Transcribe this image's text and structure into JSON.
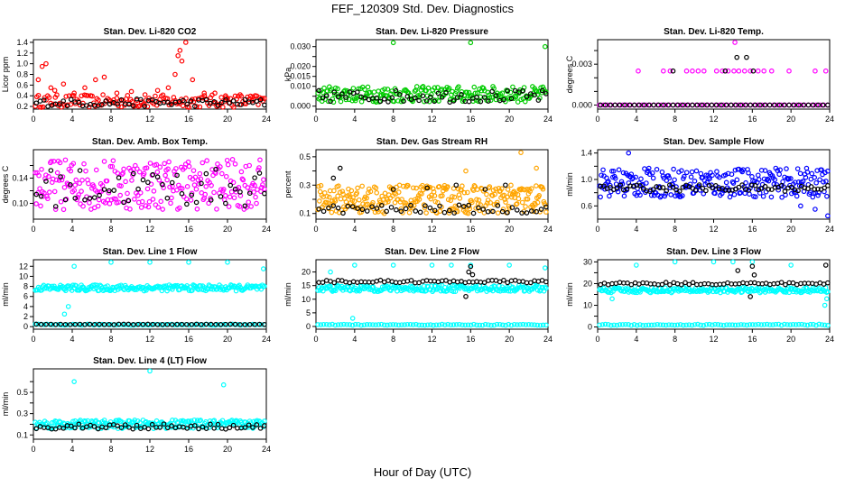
{
  "title": "FEF_120309  Std. Dev. Diagnostics",
  "xlabel": "Hour of Day (UTC)",
  "colors": {
    "primary": "#000000",
    "red": "#ff0000",
    "green": "#00cc00",
    "magenta": "#ff00ff",
    "orange": "#ffa500",
    "blue": "#0000ff",
    "cyan": "#00ffff"
  },
  "chart_data": [
    {
      "type": "scatter",
      "title": "Stan. Dev. Li-820 CO2",
      "ylabel": "Licor ppm",
      "xlim": [
        0,
        24
      ],
      "ylim": [
        0.15,
        1.45
      ],
      "xticks": [
        "0",
        "4",
        "8",
        "12",
        "16",
        "20",
        "24"
      ],
      "yticks": [
        0.2,
        0.4,
        0.6,
        0.8,
        1.0,
        1.2,
        1.4
      ],
      "ytick_labels": [
        "0.2",
        "0.4",
        "0.6",
        "0.8",
        "1.0",
        "1.2",
        "1.4"
      ],
      "series": [
        {
          "color": "#ff0000",
          "x": [
            0.5,
            0.9,
            1.3,
            1.8,
            2.2,
            3.1,
            4.2,
            5.3,
            6.4,
            7.3,
            8.6,
            10.1,
            11.5,
            12.8,
            13.9,
            14.6,
            14.9,
            15.1,
            15.3,
            15.7,
            16.4,
            17.6,
            18.7,
            19.8,
            21.3,
            22.6,
            23.6
          ],
          "y": [
            0.7,
            0.95,
            1.0,
            0.55,
            0.5,
            0.62,
            0.45,
            0.55,
            0.7,
            0.75,
            0.45,
            0.48,
            0.42,
            0.5,
            0.55,
            0.8,
            1.15,
            1.25,
            1.05,
            1.4,
            0.7,
            0.45,
            0.45,
            0.4,
            0.42,
            0.38,
            0.35
          ]
        },
        {
          "color": "#ff0000",
          "band": true,
          "x0": 0.2,
          "x1": 23.8,
          "yc": 0.3,
          "amp": 0.12,
          "n": 150
        },
        {
          "color": "#000000",
          "band": true,
          "x0": 0.3,
          "x1": 23.8,
          "yc": 0.27,
          "amp": 0.07,
          "n": 60
        }
      ]
    },
    {
      "type": "scatter",
      "title": "Stan. Dev. Li-820 Pressure",
      "ylabel": "kPa",
      "xlim": [
        0,
        24
      ],
      "ylim": [
        -0.0015,
        0.0335
      ],
      "xticks": [
        "0",
        "4",
        "8",
        "12",
        "16",
        "20",
        "24"
      ],
      "yticks": [
        0.0,
        0.005,
        0.01,
        0.015,
        0.02,
        0.025,
        0.03
      ],
      "ytick_labels": [
        "0.000",
        "",
        "0.010",
        "0.015",
        "0.020",
        "",
        "0.030"
      ],
      "series": [
        {
          "color": "#00cc00",
          "x": [
            8,
            16,
            23.7
          ],
          "y": [
            0.032,
            0.032,
            0.03
          ]
        },
        {
          "color": "#00cc00",
          "band": true,
          "x0": 0.2,
          "x1": 23.8,
          "yc": 0.006,
          "amp": 0.004,
          "n": 220
        },
        {
          "color": "#000000",
          "band": true,
          "x0": 0.3,
          "x1": 23.8,
          "yc": 0.005,
          "amp": 0.003,
          "n": 60
        }
      ]
    },
    {
      "type": "scatter",
      "title": "Stan. Dev. Li-820 Temp.",
      "ylabel": "degrees C",
      "xlim": [
        0,
        24
      ],
      "ylim": [
        -0.0003,
        0.0048
      ],
      "xticks": [
        "0",
        "4",
        "8",
        "12",
        "16",
        "20",
        "24"
      ],
      "yticks": [
        0.0,
        0.001,
        0.002,
        0.003,
        0.004
      ],
      "ytick_labels": [
        "0.000",
        "",
        "",
        "0.003",
        ""
      ],
      "series": [
        {
          "color": "#ff00ff",
          "x": [
            4.2,
            6.8,
            7.5,
            9.2,
            9.8,
            10.4,
            11.0,
            12.3,
            12.9,
            13.5,
            14.1,
            14.6,
            15.2,
            15.8,
            16.6,
            17.2,
            18.0,
            19.8,
            22.5,
            23.6,
            14.2
          ],
          "y": [
            0.0025,
            0.0025,
            0.0025,
            0.0025,
            0.0025,
            0.0025,
            0.0025,
            0.0025,
            0.0025,
            0.0025,
            0.0025,
            0.0025,
            0.0025,
            0.0025,
            0.0025,
            0.0025,
            0.0025,
            0.0025,
            0.0025,
            0.0025,
            0.0046
          ]
        },
        {
          "color": "#000000",
          "x": [
            7.8,
            13.2,
            14.4,
            15.4,
            16.1
          ],
          "y": [
            0.0025,
            0.0025,
            0.0035,
            0.0035,
            0.0025
          ]
        },
        {
          "color": "#ff00ff",
          "band": true,
          "x0": 0.2,
          "x1": 23.8,
          "yc": 0.0,
          "amp": 0.0,
          "n": 60
        },
        {
          "color": "#000000",
          "band": true,
          "x0": 0.3,
          "x1": 23.8,
          "yc": 0.0,
          "amp": 0.0,
          "n": 48
        }
      ]
    },
    {
      "type": "scatter",
      "title": "Stan. Dev. Amb. Box Temp.",
      "ylabel": "degrees C",
      "xlim": [
        0,
        24
      ],
      "ylim": [
        0.075,
        0.185
      ],
      "xticks": [
        "0",
        "4",
        "8",
        "12",
        "16",
        "20",
        "24"
      ],
      "yticks": [
        0.1,
        0.12,
        0.14,
        0.16
      ],
      "ytick_labels": [
        "0.10",
        "",
        "0.14",
        ""
      ],
      "series": [
        {
          "color": "#ff00ff",
          "band": true,
          "x0": 0.2,
          "x1": 23.8,
          "yc": 0.13,
          "amp": 0.04,
          "n": 260
        },
        {
          "color": "#000000",
          "band": true,
          "x0": 0.3,
          "x1": 23.8,
          "yc": 0.125,
          "amp": 0.03,
          "n": 48
        }
      ]
    },
    {
      "type": "scatter",
      "title": "Stan. Dev. Gas Stream RH",
      "ylabel": "percent",
      "xlim": [
        0,
        24
      ],
      "ylim": [
        0.06,
        0.55
      ],
      "xticks": [
        "0",
        "4",
        "8",
        "12",
        "16",
        "20",
        "24"
      ],
      "yticks": [
        0.1,
        0.2,
        0.3,
        0.4,
        0.5
      ],
      "ytick_labels": [
        "0.1",
        "",
        "0.3",
        "",
        "0.5"
      ],
      "series": [
        {
          "color": "#ffa500",
          "band": true,
          "x0": 0.2,
          "x1": 23.8,
          "yc": 0.2,
          "amp": 0.1,
          "n": 300
        },
        {
          "color": "#ffa500",
          "x": [
            21.2,
            22.8,
            15.5
          ],
          "y": [
            0.53,
            0.42,
            0.4
          ]
        },
        {
          "color": "#000000",
          "band": true,
          "x0": 0.3,
          "x1": 23.8,
          "yc": 0.13,
          "amp": 0.03,
          "n": 48
        },
        {
          "color": "#000000",
          "x": [
            2.5,
            1.8,
            8.0,
            11.5,
            14.5,
            17.5,
            19.6
          ],
          "y": [
            0.42,
            0.35,
            0.27,
            0.28,
            0.3,
            0.27,
            0.3
          ]
        }
      ]
    },
    {
      "type": "scatter",
      "title": "Stan. Dev. Sample Flow",
      "ylabel": "ml/min",
      "xlim": [
        0,
        24
      ],
      "ylim": [
        0.4,
        1.45
      ],
      "xticks": [
        "0",
        "4",
        "8",
        "12",
        "16",
        "20",
        "24"
      ],
      "yticks": [
        0.6,
        0.8,
        1.0,
        1.2,
        1.4
      ],
      "ytick_labels": [
        "0.6",
        "",
        "1.0",
        "",
        "1.4"
      ],
      "series": [
        {
          "color": "#0000ff",
          "band": true,
          "x0": 0.2,
          "x1": 23.8,
          "yc": 0.95,
          "amp": 0.22,
          "n": 260
        },
        {
          "color": "#0000ff",
          "x": [
            3.2,
            21.0,
            22.5,
            23.8
          ],
          "y": [
            1.4,
            0.6,
            0.55,
            0.45
          ]
        },
        {
          "color": "#000000",
          "band": true,
          "x0": 0.3,
          "x1": 23.8,
          "yc": 0.87,
          "amp": 0.05,
          "n": 70
        }
      ]
    },
    {
      "type": "scatter",
      "title": "Stan. Dev. Line 1 Flow",
      "ylabel": "ml/min",
      "xlim": [
        0,
        24
      ],
      "ylim": [
        -0.5,
        13.3
      ],
      "xticks": [
        "0",
        "4",
        "8",
        "12",
        "16",
        "20",
        "24"
      ],
      "yticks": [
        0,
        2,
        4,
        6,
        8,
        10,
        12
      ],
      "ytick_labels": [
        "0",
        "2",
        "4",
        "6",
        "8",
        "10",
        "12"
      ],
      "series": [
        {
          "color": "#00ffff",
          "band": true,
          "x0": 0.2,
          "x1": 23.8,
          "yc": 7.7,
          "amp": 0.6,
          "n": 220
        },
        {
          "color": "#00ffff",
          "x": [
            3.2,
            3.6,
            4.2,
            8.0,
            12.0,
            16.0,
            20.0,
            23.7
          ],
          "y": [
            2.5,
            4.0,
            12.0,
            12.8,
            12.8,
            12.8,
            12.8,
            11.5
          ]
        },
        {
          "color": "#00ffff",
          "band": true,
          "x0": 0.2,
          "x1": 23.8,
          "yc": 0.4,
          "amp": 0.1,
          "n": 80
        },
        {
          "color": "#000000",
          "band": true,
          "x0": 0.3,
          "x1": 23.8,
          "yc": 0.45,
          "amp": 0.05,
          "n": 48
        }
      ]
    },
    {
      "type": "scatter",
      "title": "Stan. Dev. Line 2 Flow",
      "ylabel": "ml/min",
      "xlim": [
        0,
        24
      ],
      "ylim": [
        -1,
        24.5
      ],
      "xticks": [
        "0",
        "4",
        "8",
        "12",
        "16",
        "20",
        "24"
      ],
      "yticks": [
        0,
        5,
        10,
        15,
        20
      ],
      "ytick_labels": [
        "0",
        "5",
        "10",
        "15",
        "20"
      ],
      "series": [
        {
          "color": "#00ffff",
          "band": true,
          "x0": 0.2,
          "x1": 23.8,
          "yc": 14.0,
          "amp": 1.2,
          "n": 220
        },
        {
          "color": "#00ffff",
          "x": [
            1.5,
            3.8,
            4.0,
            8.0,
            12.0,
            14.0,
            16.0,
            20.0,
            23.7
          ],
          "y": [
            20,
            3,
            22.5,
            22.5,
            22.5,
            22.5,
            22.5,
            22.5,
            21.5
          ]
        },
        {
          "color": "#00ffff",
          "band": true,
          "x0": 0.2,
          "x1": 23.8,
          "yc": 0.6,
          "amp": 0.2,
          "n": 80
        },
        {
          "color": "#000000",
          "band": true,
          "x0": 0.3,
          "x1": 23.8,
          "yc": 16.5,
          "amp": 0.5,
          "n": 60
        },
        {
          "color": "#000000",
          "x": [
            15.5,
            15.8,
            16.0,
            16.2
          ],
          "y": [
            11,
            20,
            22,
            19
          ]
        }
      ]
    },
    {
      "type": "scatter",
      "title": "Stan. Dev. Line 3 Flow",
      "ylabel": "ml/min",
      "xlim": [
        0,
        24
      ],
      "ylim": [
        -1,
        31
      ],
      "xticks": [
        "0",
        "4",
        "8",
        "12",
        "16",
        "20",
        "24"
      ],
      "yticks": [
        0,
        5,
        10,
        15,
        20,
        25,
        30
      ],
      "ytick_labels": [
        "0",
        "",
        "10",
        "",
        "20",
        "",
        "30"
      ],
      "series": [
        {
          "color": "#00ffff",
          "band": true,
          "x0": 0.2,
          "x1": 23.8,
          "yc": 17.0,
          "amp": 1.2,
          "n": 220
        },
        {
          "color": "#00ffff",
          "x": [
            1.5,
            4.0,
            8.0,
            12.0,
            14.0,
            16.0,
            20.0,
            23.7,
            23.5
          ],
          "y": [
            13,
            28.5,
            30,
            30,
            30,
            30,
            28.5,
            13,
            10
          ]
        },
        {
          "color": "#00ffff",
          "band": true,
          "x0": 0.2,
          "x1": 23.8,
          "yc": 1.0,
          "amp": 0.3,
          "n": 80
        },
        {
          "color": "#000000",
          "band": true,
          "x0": 0.3,
          "x1": 23.8,
          "yc": 20.0,
          "amp": 0.6,
          "n": 60
        },
        {
          "color": "#000000",
          "x": [
            14.5,
            15.8,
            16.0,
            16.2,
            23.6
          ],
          "y": [
            26,
            14,
            28,
            24,
            28.5
          ]
        }
      ]
    },
    {
      "type": "scatter",
      "title": "Stan. Dev. Line 4 (LT) Flow",
      "ylabel": "ml/min",
      "xlim": [
        0,
        24
      ],
      "ylim": [
        0.06,
        0.72
      ],
      "xticks": [
        "0",
        "4",
        "8",
        "12",
        "16",
        "20",
        "24"
      ],
      "yticks": [
        0.1,
        0.2,
        0.3,
        0.4,
        0.5,
        0.6
      ],
      "ytick_labels": [
        "0.1",
        "",
        "0.3",
        "",
        "0.5",
        ""
      ],
      "series": [
        {
          "color": "#00ffff",
          "band": true,
          "x0": 0.2,
          "x1": 23.8,
          "yc": 0.2,
          "amp": 0.04,
          "n": 220
        },
        {
          "color": "#00ffff",
          "x": [
            4.2,
            12.0,
            19.6
          ],
          "y": [
            0.6,
            0.7,
            0.57
          ]
        },
        {
          "color": "#000000",
          "band": true,
          "x0": 0.3,
          "x1": 23.8,
          "yc": 0.18,
          "amp": 0.025,
          "n": 60
        }
      ]
    }
  ]
}
